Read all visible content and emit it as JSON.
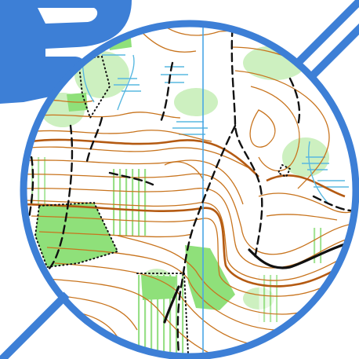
{
  "map": {
    "type": "orienteering-map",
    "lens_shape": "circle",
    "colors": {
      "frame": "#3d7fd6",
      "contour": "#c8741e",
      "forest_green": "#8fe07a",
      "light_green": "#cdf0c0",
      "water": "#59b8e0",
      "track": "#111111",
      "grid_line": "#4aa7e6",
      "white_forest": "#ffffff"
    },
    "icons": [
      "number-three-badge-icon",
      "diagonal-line-icon"
    ]
  }
}
